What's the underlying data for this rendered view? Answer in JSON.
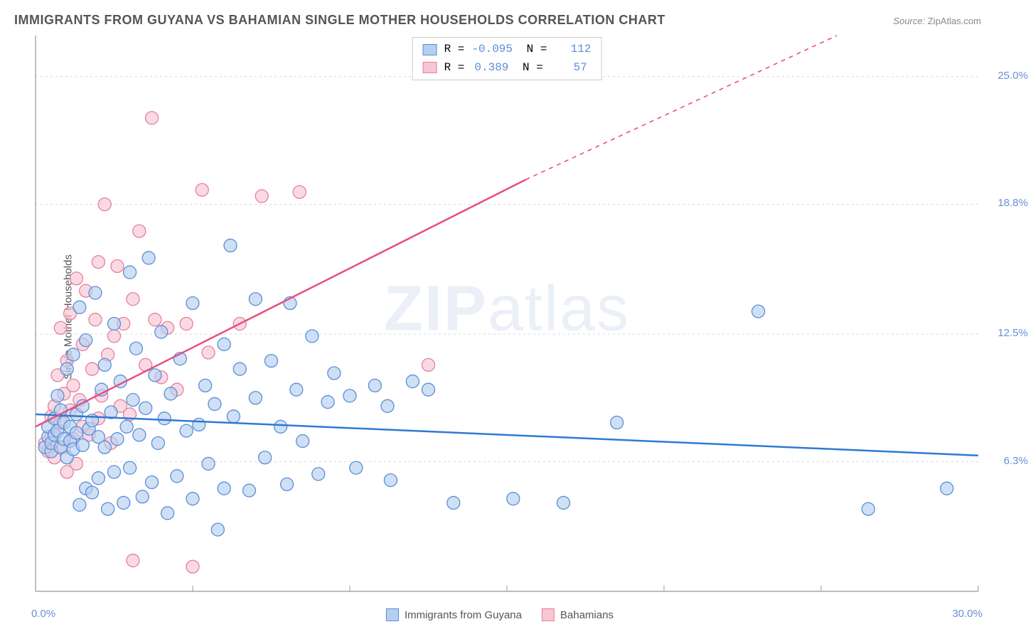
{
  "title": "IMMIGRANTS FROM GUYANA VS BAHAMIAN SINGLE MOTHER HOUSEHOLDS CORRELATION CHART",
  "source": {
    "label": "Source:",
    "value": "ZipAtlas.com"
  },
  "ylabel": "Single Mother Households",
  "watermark": {
    "zip": "ZIP",
    "atlas": "atlas"
  },
  "chart": {
    "type": "scatter",
    "background_color": "#ffffff",
    "grid_color": "#d8d8d8",
    "axis_color": "#999999",
    "tick_label_color": "#6b8fd6",
    "xlim": [
      0,
      30
    ],
    "ylim": [
      0,
      27
    ],
    "yticks": [
      {
        "v": 6.3,
        "label": "6.3%"
      },
      {
        "v": 12.5,
        "label": "12.5%"
      },
      {
        "v": 18.8,
        "label": "18.8%"
      },
      {
        "v": 25.0,
        "label": "25.0%"
      }
    ],
    "x_axis_labels": {
      "min": "0.0%",
      "max": "30.0%"
    },
    "xtick_positions": [
      0,
      5,
      10,
      15,
      20,
      25,
      30
    ],
    "marker_radius": 9,
    "series": {
      "blue": {
        "label": "Immigrants from Guyana",
        "fill": "#b6cfef",
        "stroke": "#5a8dd8",
        "line_color": "#2f7ad1",
        "R": "-0.095",
        "N": "112",
        "trend": {
          "x1": 0,
          "y1": 8.6,
          "x2": 30,
          "y2": 6.6,
          "dashed_after": 30
        },
        "points": [
          [
            0.3,
            7.0
          ],
          [
            0.4,
            7.5
          ],
          [
            0.4,
            8.0
          ],
          [
            0.5,
            6.8
          ],
          [
            0.5,
            7.2
          ],
          [
            0.6,
            8.4
          ],
          [
            0.6,
            7.6
          ],
          [
            0.7,
            9.5
          ],
          [
            0.7,
            7.8
          ],
          [
            0.8,
            8.8
          ],
          [
            0.8,
            7.0
          ],
          [
            0.9,
            7.4
          ],
          [
            0.9,
            8.2
          ],
          [
            1.0,
            6.5
          ],
          [
            1.0,
            10.8
          ],
          [
            1.1,
            8.0
          ],
          [
            1.1,
            7.3
          ],
          [
            1.2,
            6.9
          ],
          [
            1.2,
            11.5
          ],
          [
            1.3,
            7.7
          ],
          [
            1.3,
            8.6
          ],
          [
            1.4,
            4.2
          ],
          [
            1.4,
            13.8
          ],
          [
            1.5,
            7.1
          ],
          [
            1.5,
            9.0
          ],
          [
            1.6,
            5.0
          ],
          [
            1.6,
            12.2
          ],
          [
            1.7,
            7.9
          ],
          [
            1.8,
            8.3
          ],
          [
            1.8,
            4.8
          ],
          [
            1.9,
            14.5
          ],
          [
            2.0,
            7.5
          ],
          [
            2.0,
            5.5
          ],
          [
            2.1,
            9.8
          ],
          [
            2.2,
            7.0
          ],
          [
            2.2,
            11.0
          ],
          [
            2.3,
            4.0
          ],
          [
            2.4,
            8.7
          ],
          [
            2.5,
            5.8
          ],
          [
            2.5,
            13.0
          ],
          [
            2.6,
            7.4
          ],
          [
            2.7,
            10.2
          ],
          [
            2.8,
            4.3
          ],
          [
            2.9,
            8.0
          ],
          [
            3.0,
            6.0
          ],
          [
            3.0,
            15.5
          ],
          [
            3.1,
            9.3
          ],
          [
            3.2,
            11.8
          ],
          [
            3.3,
            7.6
          ],
          [
            3.4,
            4.6
          ],
          [
            3.5,
            8.9
          ],
          [
            3.6,
            16.2
          ],
          [
            3.7,
            5.3
          ],
          [
            3.8,
            10.5
          ],
          [
            3.9,
            7.2
          ],
          [
            4.0,
            12.6
          ],
          [
            4.1,
            8.4
          ],
          [
            4.2,
            3.8
          ],
          [
            4.3,
            9.6
          ],
          [
            4.5,
            5.6
          ],
          [
            4.6,
            11.3
          ],
          [
            4.8,
            7.8
          ],
          [
            5.0,
            14.0
          ],
          [
            5.0,
            4.5
          ],
          [
            5.2,
            8.1
          ],
          [
            5.4,
            10.0
          ],
          [
            5.5,
            6.2
          ],
          [
            5.7,
            9.1
          ],
          [
            5.8,
            3.0
          ],
          [
            6.0,
            12.0
          ],
          [
            6.0,
            5.0
          ],
          [
            6.2,
            16.8
          ],
          [
            6.3,
            8.5
          ],
          [
            6.5,
            10.8
          ],
          [
            6.8,
            4.9
          ],
          [
            7.0,
            9.4
          ],
          [
            7.0,
            14.2
          ],
          [
            7.3,
            6.5
          ],
          [
            7.5,
            11.2
          ],
          [
            7.8,
            8.0
          ],
          [
            8.0,
            5.2
          ],
          [
            8.1,
            14.0
          ],
          [
            8.3,
            9.8
          ],
          [
            8.5,
            7.3
          ],
          [
            8.8,
            12.4
          ],
          [
            9.0,
            5.7
          ],
          [
            9.3,
            9.2
          ],
          [
            9.5,
            10.6
          ],
          [
            10.0,
            9.5
          ],
          [
            10.2,
            6.0
          ],
          [
            10.8,
            10.0
          ],
          [
            11.2,
            9.0
          ],
          [
            11.3,
            5.4
          ],
          [
            12.0,
            10.2
          ],
          [
            12.5,
            9.8
          ],
          [
            13.3,
            4.3
          ],
          [
            15.2,
            4.5
          ],
          [
            16.8,
            4.3
          ],
          [
            18.5,
            8.2
          ],
          [
            23.0,
            13.6
          ],
          [
            26.5,
            4.0
          ],
          [
            29.0,
            5.0
          ]
        ]
      },
      "pink": {
        "label": "Bahamians",
        "fill": "#f6c6d3",
        "stroke": "#e77d9e",
        "line_color": "#e84f80",
        "R": "0.389",
        "N": "57",
        "trend": {
          "x1": 0,
          "y1": 8.0,
          "x2": 15.6,
          "y2": 20.0,
          "dashed_after": 15.6,
          "dash_x2": 25.5,
          "dash_y2": 27.0
        },
        "points": [
          [
            0.3,
            7.2
          ],
          [
            0.4,
            6.8
          ],
          [
            0.5,
            8.5
          ],
          [
            0.5,
            7.5
          ],
          [
            0.6,
            9.0
          ],
          [
            0.6,
            6.5
          ],
          [
            0.7,
            7.8
          ],
          [
            0.7,
            10.5
          ],
          [
            0.8,
            8.2
          ],
          [
            0.8,
            12.8
          ],
          [
            0.9,
            7.0
          ],
          [
            0.9,
            9.6
          ],
          [
            1.0,
            11.2
          ],
          [
            1.0,
            5.8
          ],
          [
            1.1,
            8.8
          ],
          [
            1.1,
            13.5
          ],
          [
            1.2,
            7.4
          ],
          [
            1.2,
            10.0
          ],
          [
            1.3,
            15.2
          ],
          [
            1.3,
            6.2
          ],
          [
            1.4,
            9.3
          ],
          [
            1.5,
            12.0
          ],
          [
            1.5,
            8.0
          ],
          [
            1.6,
            14.6
          ],
          [
            1.7,
            7.6
          ],
          [
            1.8,
            10.8
          ],
          [
            1.9,
            13.2
          ],
          [
            2.0,
            8.4
          ],
          [
            2.0,
            16.0
          ],
          [
            2.1,
            9.5
          ],
          [
            2.2,
            18.8
          ],
          [
            2.3,
            11.5
          ],
          [
            2.4,
            7.2
          ],
          [
            2.5,
            12.4
          ],
          [
            2.6,
            15.8
          ],
          [
            2.7,
            9.0
          ],
          [
            2.8,
            13.0
          ],
          [
            3.0,
            8.6
          ],
          [
            3.1,
            1.5
          ],
          [
            3.1,
            14.2
          ],
          [
            3.3,
            17.5
          ],
          [
            3.5,
            11.0
          ],
          [
            3.7,
            23.0
          ],
          [
            3.8,
            13.2
          ],
          [
            4.0,
            10.4
          ],
          [
            4.2,
            12.8
          ],
          [
            4.5,
            9.8
          ],
          [
            4.8,
            13.0
          ],
          [
            5.0,
            1.2
          ],
          [
            5.3,
            19.5
          ],
          [
            5.5,
            11.6
          ],
          [
            6.5,
            13.0
          ],
          [
            7.2,
            19.2
          ],
          [
            8.4,
            19.4
          ],
          [
            12.5,
            11.0
          ]
        ]
      }
    }
  },
  "bottom_legend": [
    {
      "key": "blue",
      "label": "Immigrants from Guyana"
    },
    {
      "key": "pink",
      "label": "Bahamians"
    }
  ]
}
